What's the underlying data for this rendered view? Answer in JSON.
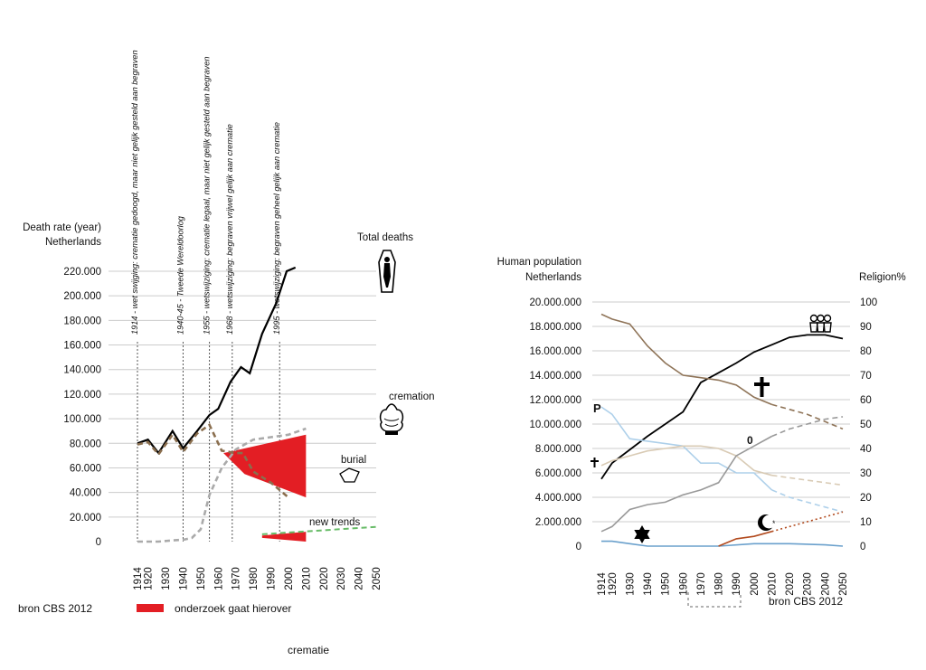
{
  "page": {
    "left_caption": "bron CBS 2012",
    "legend_label": "onderzoek gaat hierover",
    "right_caption": "bron CBS 2012",
    "bottom_caption": "crematie",
    "colors": {
      "research_red": "#e31e24"
    }
  },
  "chart_data": [
    {
      "type": "line",
      "title": "Death rate (year) Netherlands",
      "ylabel_line1": "Death rate (year)",
      "ylabel_line2": "Netherlands",
      "x": [
        1914,
        1920,
        1930,
        1940,
        1950,
        1960,
        1970,
        1980,
        1990,
        2000,
        2010,
        2020,
        2030,
        2040,
        2050
      ],
      "x_tick_labels": [
        "1914",
        "1920",
        "1930",
        "1940",
        "1950",
        "1960",
        "1970",
        "1980",
        "1990",
        "2000",
        "2010",
        "2020",
        "2030",
        "2040",
        "2050"
      ],
      "y_tick_labels": [
        "0",
        "20.000",
        "40.000",
        "60.000",
        "80.000",
        "100.000",
        "120.000",
        "140.000",
        "160.000",
        "180.000",
        "200.000",
        "220.000"
      ],
      "ylim": [
        0,
        220000
      ],
      "series": [
        {
          "name": "Total deaths",
          "color": "#000000",
          "style": "solid",
          "points": [
            [
              1914,
              80000
            ],
            [
              1920,
              83000
            ],
            [
              1926,
              72000
            ],
            [
              1934,
              90000
            ],
            [
              1940,
              76000
            ],
            [
              1948,
              90000
            ],
            [
              1955,
              103000
            ],
            [
              1960,
              108000
            ],
            [
              1967,
              130000
            ],
            [
              1973,
              142000
            ],
            [
              1978,
              137000
            ],
            [
              1985,
              169000
            ],
            [
              1993,
              194000
            ],
            [
              1999,
              220000
            ],
            [
              2004,
              223000
            ]
          ]
        },
        {
          "name": "cremation",
          "color": "#aaaaaa",
          "style": "dashed",
          "points": [
            [
              1914,
              0
            ],
            [
              1920,
              0
            ],
            [
              1926,
              0
            ],
            [
              1934,
              1000
            ],
            [
              1940,
              1500
            ],
            [
              1945,
              3000
            ],
            [
              1950,
              10000
            ],
            [
              1955,
              38000
            ],
            [
              1962,
              60000
            ],
            [
              1970,
              75000
            ],
            [
              1980,
              83000
            ],
            [
              1990,
              85000
            ],
            [
              2000,
              87000
            ],
            [
              2010,
              92000
            ]
          ]
        },
        {
          "name": "burial",
          "color": "#8a6e4e",
          "style": "dashed",
          "points": [
            [
              1914,
              79000
            ],
            [
              1920,
              81000
            ],
            [
              1926,
              71000
            ],
            [
              1934,
              87000
            ],
            [
              1940,
              73000
            ],
            [
              1948,
              88000
            ],
            [
              1955,
              95000
            ],
            [
              1962,
              74000
            ],
            [
              1970,
              72000
            ],
            [
              1974,
              72000
            ],
            [
              1980,
              57000
            ],
            [
              1990,
              48000
            ],
            [
              2000,
              36000
            ]
          ]
        }
      ],
      "annotations": [
        {
          "text": "Total deaths"
        },
        {
          "text": "cremation"
        },
        {
          "text": "burial"
        },
        {
          "text": "new trends"
        }
      ],
      "regions": [
        {
          "name": "cremation research area",
          "upper": [
            [
              1963,
              72000
            ],
            [
              2010,
              87000
            ]
          ],
          "lower": [
            [
              1975,
              55000
            ],
            [
              2010,
              36000
            ]
          ]
        },
        {
          "name": "new trends research area",
          "upper": [
            [
              1985,
              5000
            ],
            [
              2010,
              8000
            ]
          ],
          "lower": [
            [
              1985,
              3000
            ],
            [
              2010,
              0
            ]
          ]
        }
      ],
      "events": [
        {
          "year": 1914,
          "label": "1914 - wet swijging: crematie gedoogd,  maar niet gelijk gesteld aan begraven"
        },
        {
          "year": 1940,
          "label": "1940-45 - Tweede Wereldoorlog"
        },
        {
          "year": 1955,
          "label": "1955 - wetswijziging: crematie legaal,  maar niet gelijk gesteld aan begraven"
        },
        {
          "year": 1968,
          "label": "1968 - wetswijziging: begraven vrijwel gelijk aan crematie"
        },
        {
          "year": 1995,
          "label": "1995 - wetswijziging: begraven geheel gelijk aan crematie"
        }
      ],
      "grid": true
    },
    {
      "type": "line",
      "title": "Human population Netherlands",
      "ylabel_line1": "Human population",
      "ylabel_line2": "Netherlands",
      "y2label": "Religion%",
      "x": [
        1914,
        1920,
        1930,
        1940,
        1950,
        1960,
        1970,
        1980,
        1990,
        2000,
        2010,
        2020,
        2030,
        2040,
        2050
      ],
      "x_tick_labels": [
        "1914",
        "1920",
        "1930",
        "1940",
        "1950",
        "1960",
        "1970",
        "1980",
        "1990",
        "2000",
        "2010",
        "2020",
        "2030",
        "2040",
        "2050"
      ],
      "y_tick_labels": [
        "0",
        "2.000.000",
        "4.000.000",
        "6.000.000",
        "8.000.000",
        "10.000.000",
        "12.000.000",
        "14.000.000",
        "16.000.000",
        "18.000.000",
        "20.000.000"
      ],
      "y2_tick_labels": [
        "0",
        "10",
        "20",
        "30",
        "40",
        "50",
        "60",
        "70",
        "80",
        "90",
        "100"
      ],
      "ylim": [
        0,
        20000000
      ],
      "y2lim": [
        0,
        100
      ],
      "series": [
        {
          "name": "population",
          "axis": "left",
          "color": "#000000",
          "style": "solid",
          "points": [
            [
              1914,
              5500000
            ],
            [
              1920,
              6800000
            ],
            [
              1930,
              7900000
            ],
            [
              1940,
              9000000
            ],
            [
              1950,
              10000000
            ],
            [
              1960,
              11000000
            ],
            [
              1970,
              13400000
            ],
            [
              1980,
              14200000
            ],
            [
              1990,
              15000000
            ],
            [
              2000,
              15900000
            ],
            [
              2010,
              16500000
            ],
            [
              2020,
              17100000
            ],
            [
              2030,
              17300000
            ],
            [
              2040,
              17300000
            ],
            [
              2050,
              17000000
            ]
          ]
        },
        {
          "name": "catholic",
          "axis": "right",
          "color": "#8f7458",
          "style": "solid",
          "points": [
            [
              1914,
              95
            ],
            [
              1920,
              93
            ],
            [
              1930,
              91
            ],
            [
              1940,
              82
            ],
            [
              1950,
              75
            ],
            [
              1960,
              70
            ],
            [
              1970,
              69
            ],
            [
              1980,
              68
            ],
            [
              1990,
              66
            ],
            [
              2000,
              61
            ],
            [
              2010,
              58
            ]
          ]
        },
        {
          "name": "catholic projection",
          "axis": "right",
          "color": "#8f7458",
          "style": "dashed",
          "points": [
            [
              2010,
              58
            ],
            [
              2020,
              56
            ],
            [
              2030,
              54
            ],
            [
              2040,
              51
            ],
            [
              2050,
              48
            ]
          ]
        },
        {
          "name": "protestant",
          "axis": "right",
          "color": "#aed0ea",
          "style": "solid",
          "points": [
            [
              1914,
              57
            ],
            [
              1920,
              54
            ],
            [
              1930,
              44
            ],
            [
              1940,
              43
            ],
            [
              1950,
              42
            ],
            [
              1960,
              41
            ],
            [
              1970,
              34
            ],
            [
              1980,
              34
            ],
            [
              1990,
              30
            ],
            [
              2000,
              30
            ],
            [
              2010,
              23
            ]
          ]
        },
        {
          "name": "protestant projection",
          "axis": "right",
          "color": "#aed0ea",
          "style": "dashed",
          "points": [
            [
              2010,
              23
            ],
            [
              2020,
              20
            ],
            [
              2030,
              18
            ],
            [
              2040,
              16
            ],
            [
              2050,
              14
            ]
          ]
        },
        {
          "name": "other christian",
          "axis": "right",
          "color": "#d9cbb5",
          "style": "solid",
          "points": [
            [
              1914,
              33
            ],
            [
              1920,
              35
            ],
            [
              1930,
              37
            ],
            [
              1940,
              39
            ],
            [
              1950,
              40
            ],
            [
              1960,
              41
            ],
            [
              1970,
              41
            ],
            [
              1980,
              40
            ],
            [
              1990,
              37
            ],
            [
              2000,
              31
            ],
            [
              2010,
              29
            ]
          ]
        },
        {
          "name": "other christian projection",
          "axis": "right",
          "color": "#d9cbb5",
          "style": "dashed",
          "points": [
            [
              2010,
              29
            ],
            [
              2020,
              28
            ],
            [
              2030,
              27
            ],
            [
              2040,
              26
            ],
            [
              2050,
              25
            ]
          ]
        },
        {
          "name": "no religion",
          "axis": "right",
          "color": "#999999",
          "style": "solid",
          "points": [
            [
              1914,
              6
            ],
            [
              1920,
              8
            ],
            [
              1930,
              15
            ],
            [
              1940,
              17
            ],
            [
              1950,
              18
            ],
            [
              1960,
              21
            ],
            [
              1970,
              23
            ],
            [
              1980,
              26
            ],
            [
              1990,
              37
            ],
            [
              2000,
              41
            ],
            [
              2010,
              45
            ]
          ]
        },
        {
          "name": "no religion projection",
          "axis": "right",
          "color": "#999999",
          "style": "dashed",
          "points": [
            [
              2010,
              45
            ],
            [
              2020,
              48
            ],
            [
              2030,
              50
            ],
            [
              2040,
              52
            ],
            [
              2050,
              53
            ]
          ]
        },
        {
          "name": "jewish",
          "axis": "right",
          "color": "#6aa0cc",
          "style": "solid",
          "points": [
            [
              1914,
              2
            ],
            [
              1920,
              2
            ],
            [
              1930,
              1
            ],
            [
              1940,
              0
            ],
            [
              1960,
              0
            ],
            [
              1980,
              0
            ],
            [
              2000,
              1
            ],
            [
              2020,
              1
            ],
            [
              2040,
              0.5
            ],
            [
              2050,
              0
            ]
          ]
        },
        {
          "name": "islam",
          "axis": "right",
          "color": "#b24a1e",
          "style": "solid",
          "points": [
            [
              1980,
              0
            ],
            [
              1990,
              3
            ],
            [
              2000,
              4
            ],
            [
              2010,
              6
            ]
          ]
        },
        {
          "name": "islam projection",
          "axis": "right",
          "color": "#b24a1e",
          "style": "dotted",
          "points": [
            [
              2010,
              6
            ],
            [
              2020,
              8
            ],
            [
              2030,
              10
            ],
            [
              2040,
              12
            ],
            [
              2050,
              14
            ]
          ]
        }
      ],
      "symbol_labels": [
        {
          "text": "P"
        },
        {
          "text": "0"
        }
      ],
      "grid": true
    }
  ]
}
